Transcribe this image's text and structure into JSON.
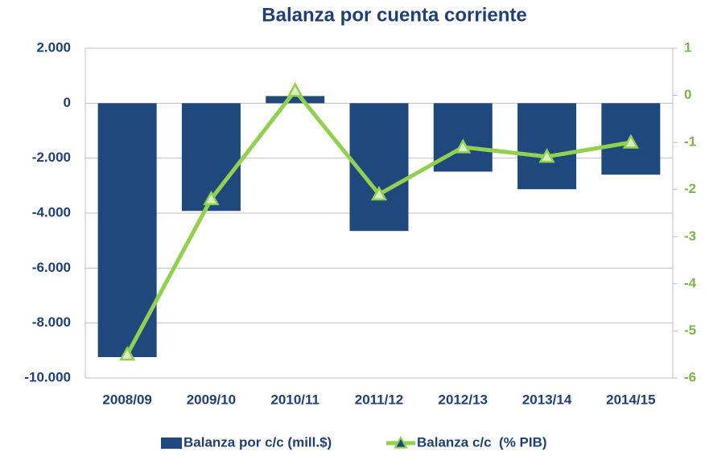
{
  "chart_data": {
    "type": "bar_line",
    "title": "Balanza por cuenta corriente",
    "categories": [
      "2008/09",
      "2009/10",
      "2010/11",
      "2011/12",
      "2012/13",
      "2013/14",
      "2014/15"
    ],
    "series": [
      {
        "name": "Balanza por c/c (mill.$)",
        "type": "bar",
        "color": "#1f497d",
        "axis": "y",
        "values": [
          -9240,
          -3920,
          260,
          -4650,
          -2490,
          -3130,
          -2600
        ]
      },
      {
        "name": "Balanza c/c  (% PIB)",
        "type": "line",
        "color": "#92d050",
        "axis": "y2",
        "values": [
          -5.5,
          -2.2,
          0.1,
          -2.1,
          -1.1,
          -1.3,
          -1.0
        ]
      }
    ],
    "ylim": [
      -10000,
      2000
    ],
    "yticks": [
      {
        "value": -10000,
        "label": "-10.000"
      },
      {
        "value": -8000,
        "label": "-8.000"
      },
      {
        "value": -6000,
        "label": "-6.000"
      },
      {
        "value": -4000,
        "label": "-4.000"
      },
      {
        "value": -2000,
        "label": "-2.000"
      },
      0,
      {
        "value": 2000,
        "label": "2.000"
      }
    ],
    "y2lim": [
      -6,
      1
    ],
    "y2ticks": [
      -6,
      -5,
      -4,
      -3,
      -2,
      -1,
      0,
      1
    ],
    "grid": true
  }
}
